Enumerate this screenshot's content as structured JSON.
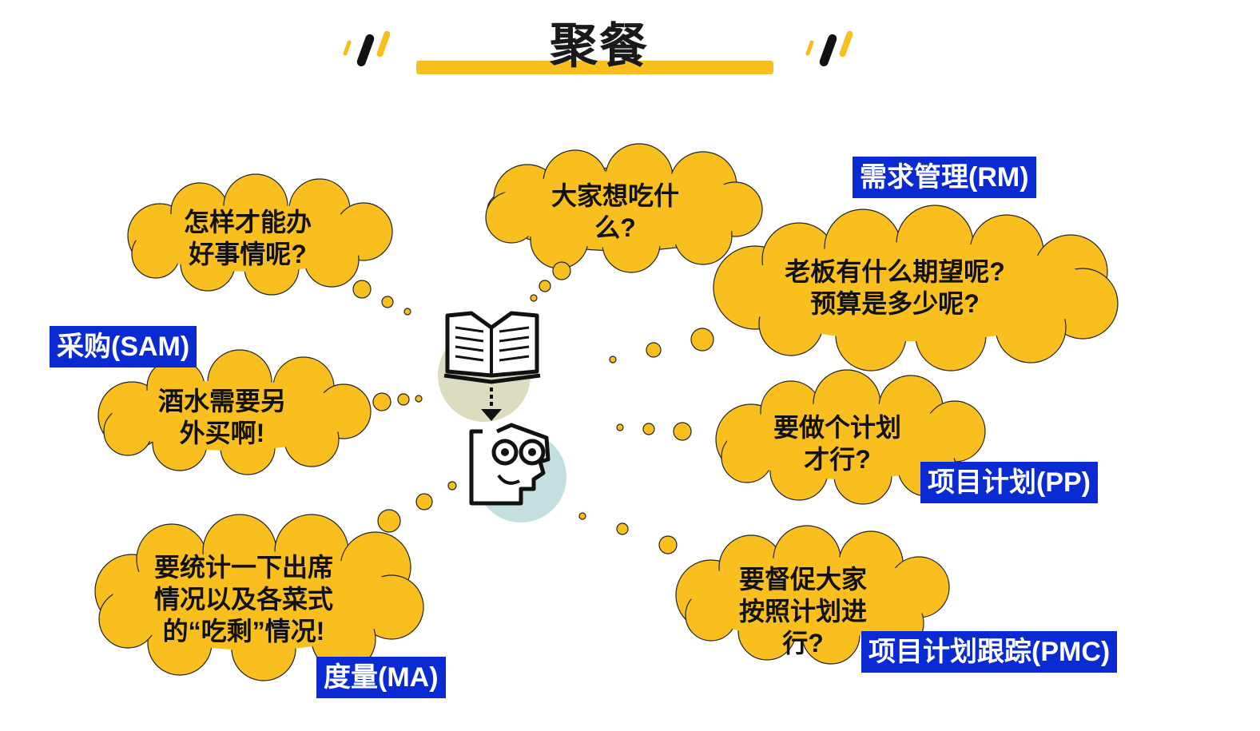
{
  "title": "聚餐",
  "colors": {
    "cloud": "#f8bf1e",
    "tag_bg": "#0a2bd1",
    "tag_text": "#ffffff",
    "text": "#111111"
  },
  "icons": {
    "center": "book-to-thinking-person-icon",
    "title_decor": "slash-marks-icon"
  },
  "bubbles": {
    "top": [
      "大家想吃什",
      "么?"
    ],
    "upper_left": [
      "怎样才能办",
      "好事情呢?"
    ],
    "middle_left": [
      "酒水需要另",
      "外买啊!"
    ],
    "lower_left": [
      "要统计一下出席",
      "情况以及各菜式",
      "的“吃剩”情况!"
    ],
    "upper_right": [
      "老板有什么期望呢?",
      "预算是多少呢?"
    ],
    "middle_right": [
      "要做个计划",
      "才行?"
    ],
    "lower_right": [
      "要督促大家",
      "按照计划进",
      "行?"
    ]
  },
  "tags": {
    "rm": "需求管理(RM)",
    "sam": "采购(SAM)",
    "pp": "项目计划(PP)",
    "ma": "度量(MA)",
    "pmc": "项目计划跟踪(PMC)"
  }
}
